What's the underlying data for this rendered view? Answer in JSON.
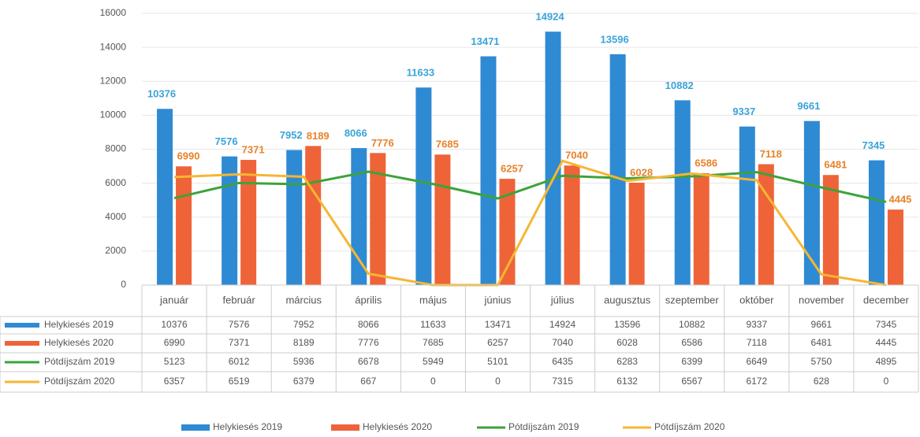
{
  "chart_data": {
    "type": "bar",
    "categories": [
      "január",
      "február",
      "március",
      "április",
      "május",
      "június",
      "július",
      "augusztus",
      "szeptember",
      "október",
      "november",
      "december"
    ],
    "series": [
      {
        "name": "Helykiesés 2019",
        "type": "bar",
        "color": "#2f8ad4",
        "label_color": "#3aa3d9",
        "values": [
          10376,
          7576,
          7952,
          8066,
          11633,
          13471,
          14924,
          13596,
          10882,
          9337,
          9661,
          7345
        ]
      },
      {
        "name": "Helykiesés 2020",
        "type": "bar",
        "color": "#ef6339",
        "label_color": "#e8822a",
        "values": [
          6990,
          7371,
          8189,
          7776,
          7685,
          6257,
          7040,
          6028,
          6586,
          7118,
          6481,
          4445
        ]
      },
      {
        "name": "Pótdíjszám 2019",
        "type": "line",
        "color": "#3ca33a",
        "values": [
          5123,
          6012,
          5936,
          6678,
          5949,
          5101,
          6435,
          6283,
          6399,
          6649,
          5750,
          4895
        ]
      },
      {
        "name": "Pótdíjszám 2020",
        "type": "line",
        "color": "#f6b632",
        "values": [
          6357,
          6519,
          6379,
          667,
          0,
          0,
          7315,
          6132,
          6567,
          6172,
          628,
          0
        ]
      }
    ],
    "ylim": [
      0,
      16000
    ],
    "yticks": [
      0,
      2000,
      4000,
      6000,
      8000,
      10000,
      12000,
      14000,
      16000
    ],
    "grid": true,
    "data_table": true,
    "legend": "bottom"
  }
}
